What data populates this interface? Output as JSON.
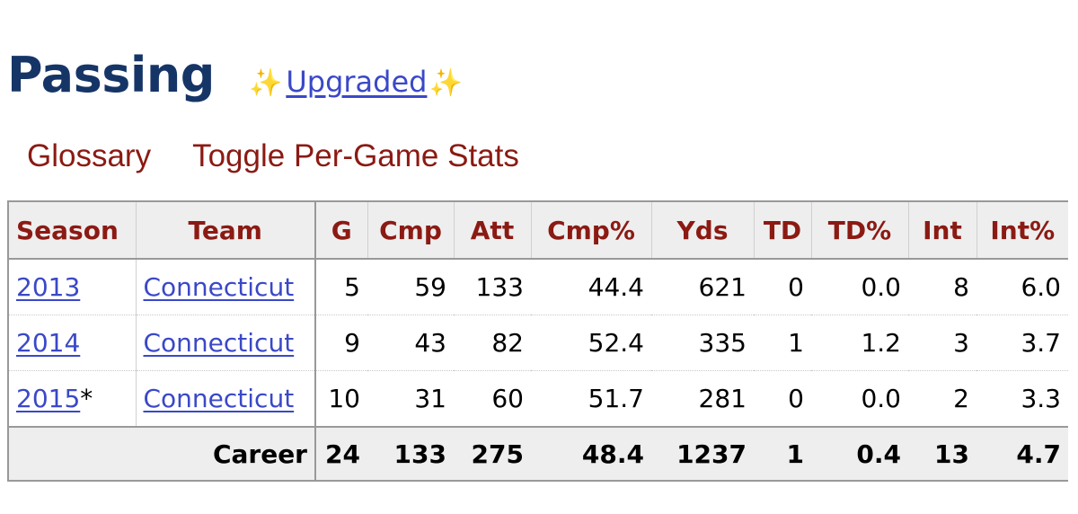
{
  "header": {
    "title": "Passing",
    "sparkle": "✨",
    "upgraded_label": "Upgraded"
  },
  "links": {
    "glossary": "Glossary",
    "toggle": "Toggle Per-Game Stats"
  },
  "table": {
    "columns": [
      "Season",
      "Team",
      "G",
      "Cmp",
      "Att",
      "Cmp%",
      "Yds",
      "TD",
      "TD%",
      "Int",
      "Int%"
    ],
    "rows": [
      {
        "season": "2013",
        "suffix": "",
        "team": "Connecticut",
        "g": "5",
        "cmp": "59",
        "att": "133",
        "cmp_pct": "44.4",
        "yds": "621",
        "td": "0",
        "td_pct": "0.0",
        "int": "8",
        "int_pct": "6.0"
      },
      {
        "season": "2014",
        "suffix": "",
        "team": "Connecticut",
        "g": "9",
        "cmp": "43",
        "att": "82",
        "cmp_pct": "52.4",
        "yds": "335",
        "td": "1",
        "td_pct": "1.2",
        "int": "3",
        "int_pct": "3.7"
      },
      {
        "season": "2015",
        "suffix": "*",
        "team": "Connecticut",
        "g": "10",
        "cmp": "31",
        "att": "60",
        "cmp_pct": "51.7",
        "yds": "281",
        "td": "0",
        "td_pct": "0.0",
        "int": "2",
        "int_pct": "3.3"
      }
    ],
    "career": {
      "label": "Career",
      "g": "24",
      "cmp": "133",
      "att": "275",
      "cmp_pct": "48.4",
      "yds": "1237",
      "td": "1",
      "td_pct": "0.4",
      "int": "13",
      "int_pct": "4.7"
    }
  },
  "colors": {
    "title": "#163567",
    "link": "#3a48c8",
    "accent": "#8b1a13",
    "header_bg": "#eeeeee"
  }
}
